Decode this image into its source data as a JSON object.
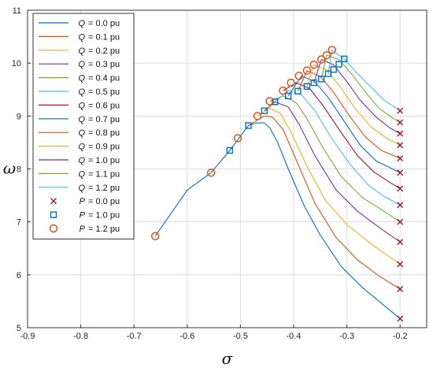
{
  "chart_data": {
    "type": "line",
    "xlabel": "σ",
    "ylabel": "ω",
    "xlim": [
      -0.9,
      -0.15
    ],
    "ylim": [
      5,
      11
    ],
    "xticks": [
      "-0.9",
      "-0.8",
      "-0.7",
      "-0.6",
      "-0.5",
      "-0.4",
      "-0.3",
      "-0.2"
    ],
    "yticks": [
      "5",
      "6",
      "7",
      "8",
      "9",
      "10",
      "11"
    ],
    "grid": true,
    "legend_position": "top-left",
    "common_path": [
      [
        -0.66,
        6.73
      ],
      [
        -0.63,
        7.2
      ],
      [
        -0.6,
        7.6
      ],
      [
        -0.58,
        7.82
      ],
      [
        -0.555,
        7.93
      ],
      [
        -0.535,
        8.2
      ],
      [
        -0.52,
        8.35
      ],
      [
        -0.505,
        8.58
      ],
      [
        -0.485,
        8.82
      ],
      [
        -0.468,
        9.0
      ],
      [
        -0.455,
        9.1
      ],
      [
        -0.445,
        9.28
      ],
      [
        -0.435,
        9.27
      ],
      [
        -0.42,
        9.48
      ],
      [
        -0.41,
        9.38
      ],
      [
        -0.405,
        9.63
      ],
      [
        -0.392,
        9.47
      ],
      [
        -0.39,
        9.76
      ],
      [
        -0.375,
        9.56
      ],
      [
        -0.375,
        9.86
      ],
      [
        -0.362,
        9.63
      ],
      [
        -0.362,
        9.97
      ],
      [
        -0.348,
        9.7
      ],
      [
        -0.348,
        10.07
      ],
      [
        -0.335,
        9.8
      ],
      [
        -0.338,
        10.15
      ],
      [
        -0.325,
        9.88
      ],
      [
        -0.328,
        10.25
      ],
      [
        -0.315,
        9.98
      ],
      [
        -0.305,
        10.08
      ]
    ],
    "series": [
      {
        "name": "Q",
        "value": "= 0.0 pu",
        "color": "#0072BD",
        "points": [
          [
            -0.66,
            6.73
          ],
          [
            -0.6,
            7.6
          ],
          [
            -0.555,
            7.93
          ],
          [
            -0.52,
            8.35
          ],
          [
            -0.485,
            8.82
          ],
          [
            -0.47,
            8.87
          ],
          [
            -0.455,
            8.87
          ],
          [
            -0.445,
            8.78
          ],
          [
            -0.43,
            8.5
          ],
          [
            -0.41,
            8.0
          ],
          [
            -0.38,
            7.3
          ],
          [
            -0.35,
            6.75
          ],
          [
            -0.31,
            6.15
          ],
          [
            -0.27,
            5.75
          ],
          [
            -0.23,
            5.42
          ],
          [
            -0.2,
            5.17
          ]
        ]
      },
      {
        "name": "Q",
        "value": "= 0.1 pu",
        "color": "#D95319",
        "points": [
          [
            -0.485,
            8.82
          ],
          [
            -0.455,
            9.0
          ],
          [
            -0.44,
            8.98
          ],
          [
            -0.42,
            8.75
          ],
          [
            -0.39,
            8.05
          ],
          [
            -0.36,
            7.35
          ],
          [
            -0.32,
            6.7
          ],
          [
            -0.28,
            6.28
          ],
          [
            -0.24,
            5.98
          ],
          [
            -0.2,
            5.73
          ]
        ]
      },
      {
        "name": "Q",
        "value": "= 0.2 pu",
        "color": "#EDB120",
        "points": [
          [
            -0.468,
            9.0
          ],
          [
            -0.445,
            9.15
          ],
          [
            -0.425,
            9.05
          ],
          [
            -0.405,
            8.7
          ],
          [
            -0.375,
            8.05
          ],
          [
            -0.34,
            7.4
          ],
          [
            -0.3,
            6.95
          ],
          [
            -0.25,
            6.55
          ],
          [
            -0.2,
            6.2
          ]
        ]
      },
      {
        "name": "Q",
        "value": "= 0.3 pu",
        "color": "#7E2F8E",
        "points": [
          [
            -0.455,
            9.1
          ],
          [
            -0.435,
            9.27
          ],
          [
            -0.41,
            9.17
          ],
          [
            -0.39,
            8.85
          ],
          [
            -0.36,
            8.25
          ],
          [
            -0.32,
            7.6
          ],
          [
            -0.28,
            7.2
          ],
          [
            -0.24,
            6.9
          ],
          [
            -0.2,
            6.62
          ]
        ]
      },
      {
        "name": "Q",
        "value": "= 0.4 pu",
        "color": "#77AC30",
        "points": [
          [
            -0.445,
            9.28
          ],
          [
            -0.42,
            9.38
          ],
          [
            -0.395,
            9.25
          ],
          [
            -0.375,
            8.95
          ],
          [
            -0.345,
            8.4
          ],
          [
            -0.31,
            7.85
          ],
          [
            -0.27,
            7.45
          ],
          [
            -0.23,
            7.2
          ],
          [
            -0.2,
            7.0
          ]
        ]
      },
      {
        "name": "Q",
        "value": "= 0.5 pu",
        "color": "#4DBEEE",
        "points": [
          [
            -0.435,
            9.27
          ],
          [
            -0.41,
            9.48
          ],
          [
            -0.385,
            9.4
          ],
          [
            -0.36,
            9.1
          ],
          [
            -0.33,
            8.6
          ],
          [
            -0.295,
            8.1
          ],
          [
            -0.26,
            7.7
          ],
          [
            -0.23,
            7.48
          ],
          [
            -0.2,
            7.32
          ]
        ]
      },
      {
        "name": "Q",
        "value": "= 0.6 pu",
        "color": "#A2142F",
        "points": [
          [
            -0.42,
            9.48
          ],
          [
            -0.395,
            9.63
          ],
          [
            -0.37,
            9.52
          ],
          [
            -0.345,
            9.2
          ],
          [
            -0.315,
            8.75
          ],
          [
            -0.28,
            8.25
          ],
          [
            -0.25,
            7.95
          ],
          [
            -0.22,
            7.75
          ],
          [
            -0.2,
            7.63
          ]
        ]
      },
      {
        "name": "Q",
        "value": "= 0.7 pu",
        "color": "#0072BD",
        "points": [
          [
            -0.41,
            9.38
          ],
          [
            -0.385,
            9.76
          ],
          [
            -0.36,
            9.65
          ],
          [
            -0.335,
            9.35
          ],
          [
            -0.305,
            8.9
          ],
          [
            -0.275,
            8.45
          ],
          [
            -0.245,
            8.15
          ],
          [
            -0.2,
            7.93
          ]
        ]
      },
      {
        "name": "Q",
        "value": "= 0.8 pu",
        "color": "#D95319",
        "points": [
          [
            -0.392,
            9.47
          ],
          [
            -0.375,
            9.86
          ],
          [
            -0.35,
            9.75
          ],
          [
            -0.325,
            9.45
          ],
          [
            -0.295,
            9.0
          ],
          [
            -0.265,
            8.6
          ],
          [
            -0.235,
            8.35
          ],
          [
            -0.2,
            8.2
          ]
        ]
      },
      {
        "name": "Q",
        "value": "= 0.9 pu",
        "color": "#EDB120",
        "points": [
          [
            -0.375,
            9.56
          ],
          [
            -0.362,
            9.97
          ],
          [
            -0.338,
            9.87
          ],
          [
            -0.312,
            9.55
          ],
          [
            -0.285,
            9.15
          ],
          [
            -0.255,
            8.8
          ],
          [
            -0.225,
            8.58
          ],
          [
            -0.2,
            8.45
          ]
        ]
      },
      {
        "name": "Q",
        "value": "= 1.0 pu",
        "color": "#7E2F8E",
        "points": [
          [
            -0.362,
            9.63
          ],
          [
            -0.348,
            10.07
          ],
          [
            -0.325,
            9.97
          ],
          [
            -0.3,
            9.65
          ],
          [
            -0.275,
            9.3
          ],
          [
            -0.245,
            8.98
          ],
          [
            -0.22,
            8.78
          ],
          [
            -0.2,
            8.67
          ]
        ]
      },
      {
        "name": "Q",
        "value": "= 1.1 pu",
        "color": "#77AC30",
        "points": [
          [
            -0.348,
            9.7
          ],
          [
            -0.338,
            10.15
          ],
          [
            -0.315,
            10.07
          ],
          [
            -0.29,
            9.78
          ],
          [
            -0.265,
            9.45
          ],
          [
            -0.24,
            9.15
          ],
          [
            -0.215,
            8.97
          ],
          [
            -0.2,
            8.88
          ]
        ]
      },
      {
        "name": "Q",
        "value": "= 1.2 pu",
        "color": "#4DBEEE",
        "points": [
          [
            -0.335,
            9.8
          ],
          [
            -0.328,
            10.25
          ],
          [
            -0.305,
            10.08
          ],
          [
            -0.28,
            9.8
          ],
          [
            -0.255,
            9.55
          ],
          [
            -0.23,
            9.3
          ],
          [
            -0.2,
            9.1
          ]
        ]
      }
    ],
    "markers": [
      {
        "name": "P",
        "value": "= 0.0 pu",
        "shape": "x",
        "color": "#A2142F",
        "points": [
          [
            -0.2,
            5.17
          ],
          [
            -0.2,
            5.73
          ],
          [
            -0.2,
            6.2
          ],
          [
            -0.2,
            6.62
          ],
          [
            -0.2,
            7.0
          ],
          [
            -0.2,
            7.32
          ],
          [
            -0.2,
            7.63
          ],
          [
            -0.2,
            7.93
          ],
          [
            -0.2,
            8.2
          ],
          [
            -0.2,
            8.45
          ],
          [
            -0.2,
            8.67
          ],
          [
            -0.2,
            8.88
          ],
          [
            -0.2,
            9.1
          ]
        ]
      },
      {
        "name": "P",
        "value": "= 1.0 pu",
        "shape": "square",
        "color": "#0072BD",
        "points": [
          [
            -0.52,
            8.35
          ],
          [
            -0.485,
            8.82
          ],
          [
            -0.455,
            9.1
          ],
          [
            -0.435,
            9.27
          ],
          [
            -0.41,
            9.38
          ],
          [
            -0.392,
            9.47
          ],
          [
            -0.375,
            9.56
          ],
          [
            -0.362,
            9.63
          ],
          [
            -0.348,
            9.7
          ],
          [
            -0.335,
            9.8
          ],
          [
            -0.325,
            9.88
          ],
          [
            -0.315,
            9.98
          ],
          [
            -0.305,
            10.08
          ]
        ]
      },
      {
        "name": "P",
        "value": "= 1.2 pu",
        "shape": "circle",
        "color": "#D95319",
        "points": [
          [
            -0.66,
            6.73
          ],
          [
            -0.555,
            7.93
          ],
          [
            -0.505,
            8.58
          ],
          [
            -0.468,
            9.0
          ],
          [
            -0.445,
            9.28
          ],
          [
            -0.42,
            9.48
          ],
          [
            -0.405,
            9.63
          ],
          [
            -0.39,
            9.76
          ],
          [
            -0.375,
            9.86
          ],
          [
            -0.362,
            9.97
          ],
          [
            -0.348,
            10.07
          ],
          [
            -0.338,
            10.15
          ],
          [
            -0.328,
            10.25
          ]
        ]
      }
    ]
  }
}
